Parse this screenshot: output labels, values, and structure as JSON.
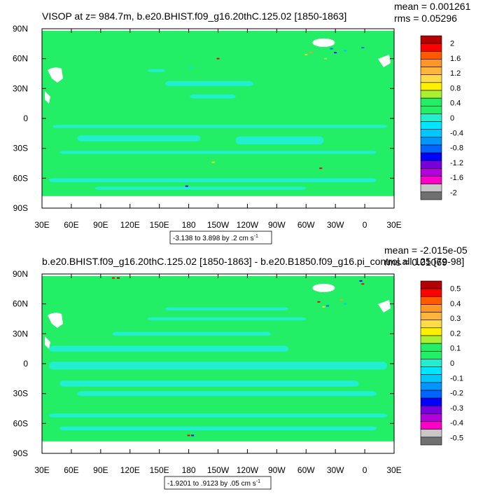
{
  "colors": {
    "land": "#ffffff",
    "zero": "#22ee66",
    "small_negative": "#22eed0",
    "frame": "#000000",
    "grid_missing": "#ffffff"
  },
  "chart_data": [
    {
      "type": "heatmap",
      "title": "VISOP at z= 984.7m, b.e20.BHIST.f09_g16.20thC.125.02 [1850-1863]",
      "stats": {
        "mean": "mean = 0.001261",
        "rms": "rms = 0.05296"
      },
      "xticks": [
        "30E",
        "60E",
        "90E",
        "120E",
        "150E",
        "180",
        "150W",
        "120W",
        "90W",
        "60W",
        "30W",
        "0",
        "30E"
      ],
      "yticks": [
        "90N",
        "60N",
        "30N",
        "0",
        "30S",
        "60S",
        "90S"
      ],
      "xlim": [
        30,
        390
      ],
      "ylim": [
        -90,
        90
      ],
      "range_label": "-3.138 to 3.898 by .2 cm s",
      "range_exponent": "-1",
      "colorbar": {
        "labels": [
          "2",
          "1.6",
          "1.2",
          "0.8",
          "0.4",
          "0",
          "-0.4",
          "-0.8",
          "-1.2",
          "-1.6",
          "-2"
        ],
        "colors": [
          "#b40000",
          "#ff0000",
          "#ff5a00",
          "#ff9628",
          "#ffb43c",
          "#ffdc46",
          "#fff000",
          "#aaf032",
          "#22ee66",
          "#22ee66",
          "#22eed0",
          "#00e6ff",
          "#00c8ff",
          "#0096ff",
          "#0064ff",
          "#0000ff",
          "#7800dc",
          "#b400dc",
          "#ff00c8",
          "#c8c8c8",
          "#707070"
        ]
      }
    },
    {
      "type": "heatmap",
      "title": "b.e20.BHIST.f09_g16.20thC.125.02 [1850-1863] - b.e20.B1850.f09_g16.pi_control.all.125 [79-98]",
      "stats": {
        "mean": "mean = -2.015e-05",
        "rms": "rms = 0.01069"
      },
      "xticks": [
        "30E",
        "60E",
        "90E",
        "120E",
        "150E",
        "180",
        "150W",
        "120W",
        "90W",
        "60W",
        "30W",
        "0",
        "30E"
      ],
      "yticks": [
        "90N",
        "60N",
        "30N",
        "0",
        "30S",
        "60S",
        "90S"
      ],
      "xlim": [
        30,
        390
      ],
      "ylim": [
        -90,
        90
      ],
      "range_label": "-1.9201 to .9123 by .05 cm s",
      "range_exponent": "-1",
      "colorbar": {
        "labels": [
          "0.5",
          "0.4",
          "0.3",
          "0.2",
          "0.1",
          "0",
          "-0.1",
          "-0.2",
          "-0.3",
          "-0.4",
          "-0.5"
        ],
        "colors": [
          "#b40000",
          "#ff0000",
          "#ff5a00",
          "#ff9628",
          "#ffb43c",
          "#ffdc46",
          "#fff000",
          "#aaf032",
          "#22ee66",
          "#22ee66",
          "#22eed0",
          "#00e6ff",
          "#00c8ff",
          "#0096ff",
          "#0064ff",
          "#0000ff",
          "#7800dc",
          "#b400dc",
          "#ff00c8",
          "#c8c8c8",
          "#707070"
        ]
      }
    }
  ]
}
